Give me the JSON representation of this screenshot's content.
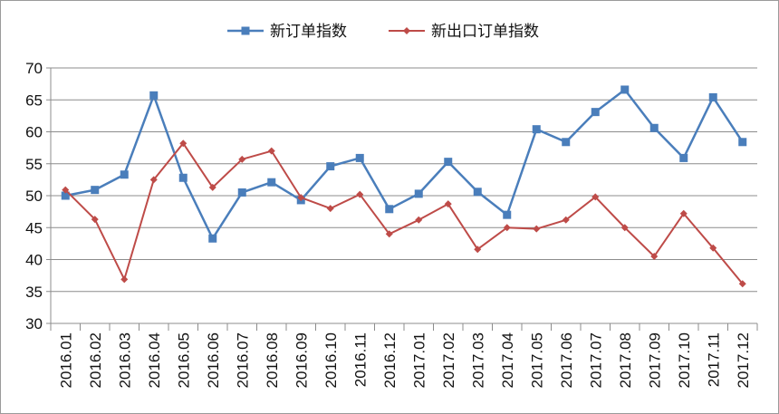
{
  "chart_data": {
    "type": "line",
    "title": "",
    "xlabel": "",
    "ylabel": "",
    "ylim": [
      30,
      70
    ],
    "yticks": [
      30,
      35,
      40,
      45,
      50,
      55,
      60,
      65,
      70
    ],
    "grid": "horizontal",
    "legend_position": "top",
    "categories": [
      "2016.01",
      "2016.02",
      "2016.03",
      "2016.04",
      "2016.05",
      "2016.06",
      "2016.07",
      "2016.08",
      "2016.09",
      "2016.10",
      "2016.11",
      "2016.12",
      "2017.01",
      "2017.02",
      "2017.03",
      "2017.04",
      "2017.05",
      "2017.06",
      "2017.07",
      "2017.08",
      "2017.09",
      "2017.10",
      "2017.11",
      "2017.12"
    ],
    "series": [
      {
        "name": "新订单指数",
        "color": "#4a7ebb",
        "marker": "square",
        "values": [
          50.0,
          50.9,
          53.3,
          65.7,
          52.8,
          43.3,
          50.5,
          52.1,
          49.3,
          54.6,
          55.9,
          47.9,
          50.3,
          55.3,
          50.6,
          47.0,
          60.4,
          58.4,
          63.1,
          66.6,
          60.6,
          55.9,
          65.4,
          58.4
        ]
      },
      {
        "name": "新出口订单指数",
        "color": "#be4b48",
        "marker": "diamond",
        "values": [
          50.9,
          46.3,
          36.9,
          52.5,
          58.2,
          51.3,
          55.7,
          57.0,
          49.7,
          48.0,
          50.2,
          44.0,
          46.2,
          48.7,
          41.6,
          45.0,
          44.8,
          46.2,
          49.8,
          45.0,
          40.5,
          47.2,
          41.8,
          36.2
        ]
      }
    ]
  }
}
